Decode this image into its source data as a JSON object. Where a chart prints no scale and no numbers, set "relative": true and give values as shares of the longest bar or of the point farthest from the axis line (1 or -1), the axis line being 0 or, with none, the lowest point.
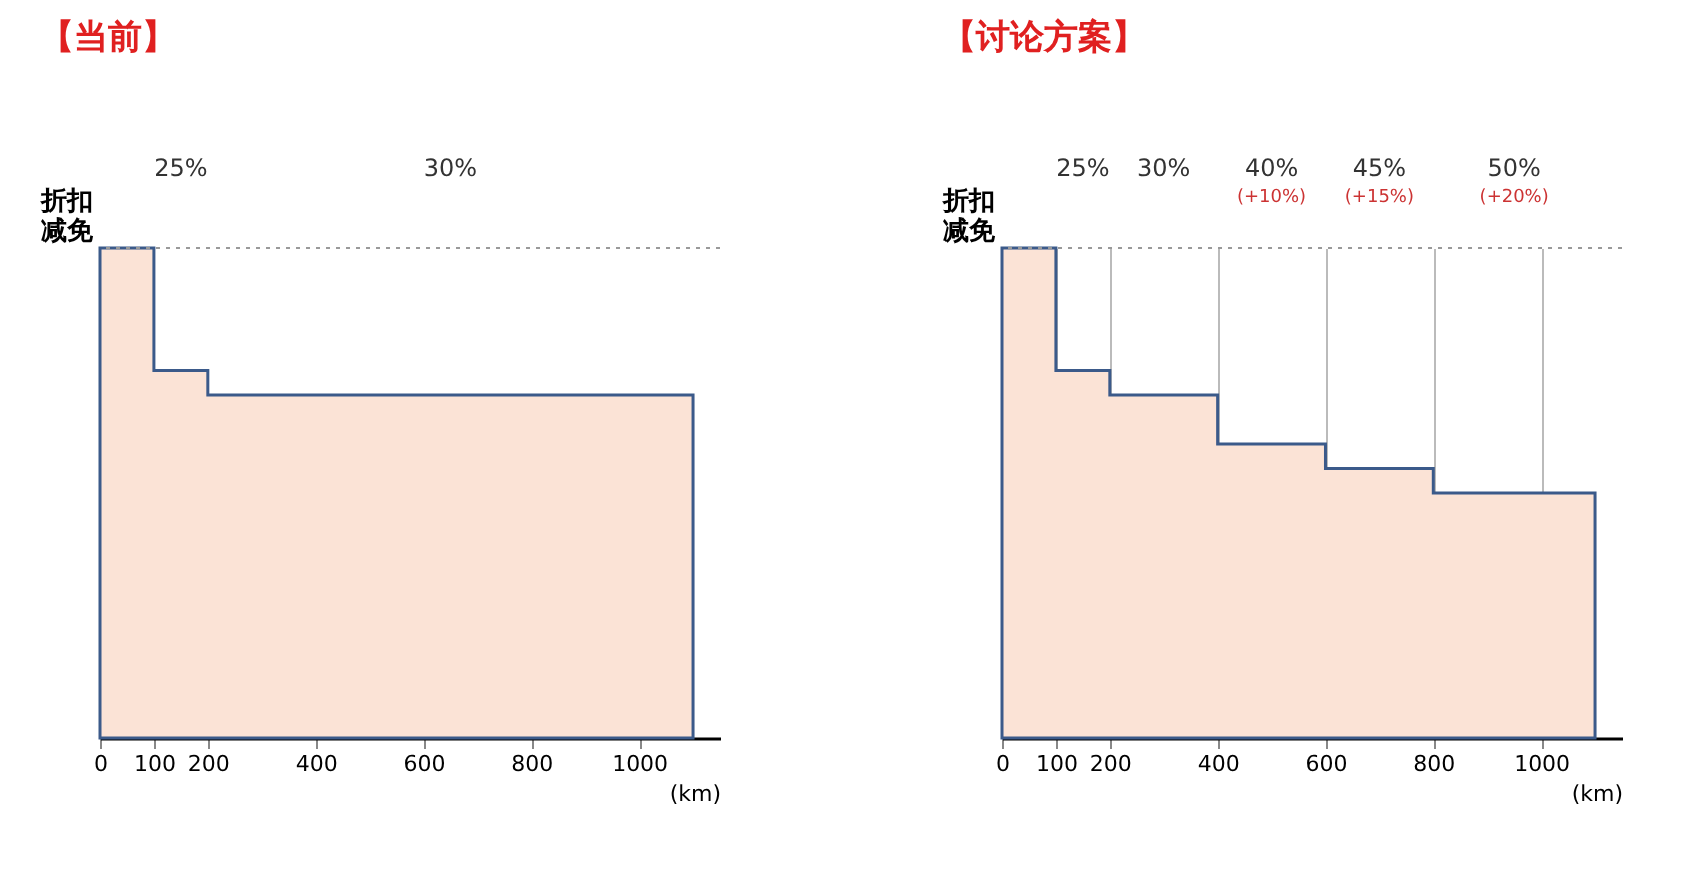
{
  "chart_data": [
    {
      "type": "area",
      "title": "【当前】",
      "ylabel": "折扣减免",
      "xlabel": "(km)",
      "relative": true,
      "color": "#3b5a8a",
      "x": [
        0,
        100,
        200,
        1100
      ],
      "values": [
        1,
        0.75,
        0.7,
        0.7
      ],
      "xlim": [
        0,
        1150
      ],
      "xticks": [
        0,
        100,
        200,
        400,
        600,
        800,
        1000
      ],
      "annotations": [
        "25%",
        "30%"
      ],
      "ref_lines": [
        {
          "axis": "y",
          "value": 1,
          "line_style": "dotted",
          "color": "#999999"
        }
      ]
    },
    {
      "type": "area",
      "title": "【讨论方案】",
      "ylabel": "折扣减免",
      "xlabel": "(km)",
      "relative": true,
      "color": "#3b5a8a",
      "grid": "x",
      "x": [
        0,
        100,
        200,
        400,
        600,
        800,
        1100
      ],
      "values": [
        1,
        0.75,
        0.7,
        0.6,
        0.55,
        0.5,
        0.5
      ],
      "xlim": [
        0,
        1150
      ],
      "xticks": [
        0,
        100,
        200,
        400,
        600,
        800,
        1000
      ],
      "annotations": [
        "25%",
        "30%",
        "40%\n(+10%)",
        "45%\n(+15%)",
        "50%\n(+20%)"
      ],
      "ref_lines": [
        {
          "axis": "y",
          "value": 1,
          "line_style": "dotted",
          "color": "#999999"
        }
      ]
    }
  ]
}
